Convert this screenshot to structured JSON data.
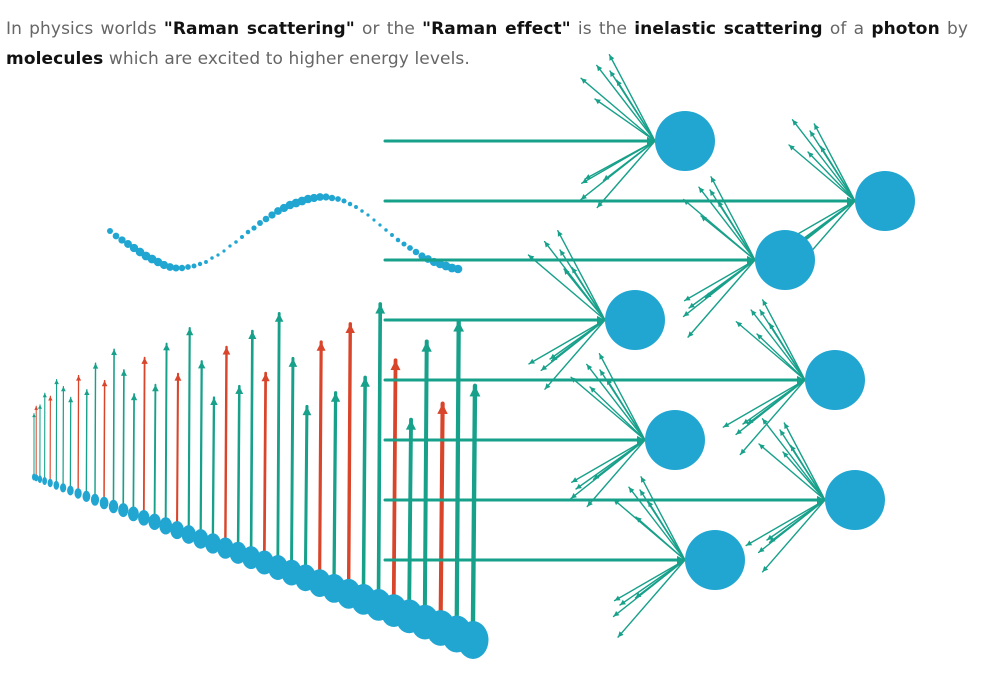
{
  "paragraph": {
    "t1": "In physics worlds ",
    "k1": "\"Raman scattering\"",
    "t2": " or the ",
    "k2": "\"Raman effect\"",
    "t3": " is the ",
    "k3": "inelastic scattering",
    "t4": " of a ",
    "k4": "photon",
    "t5": " by ",
    "k5": "molecules",
    "t6": " which are excited to higher energy levels."
  },
  "colors": {
    "molecule": "#21a6d2",
    "photon_arrow": "#17a08a",
    "raman_arrow": "#d9452a",
    "text": "#666666",
    "emphasis": "#111111"
  }
}
